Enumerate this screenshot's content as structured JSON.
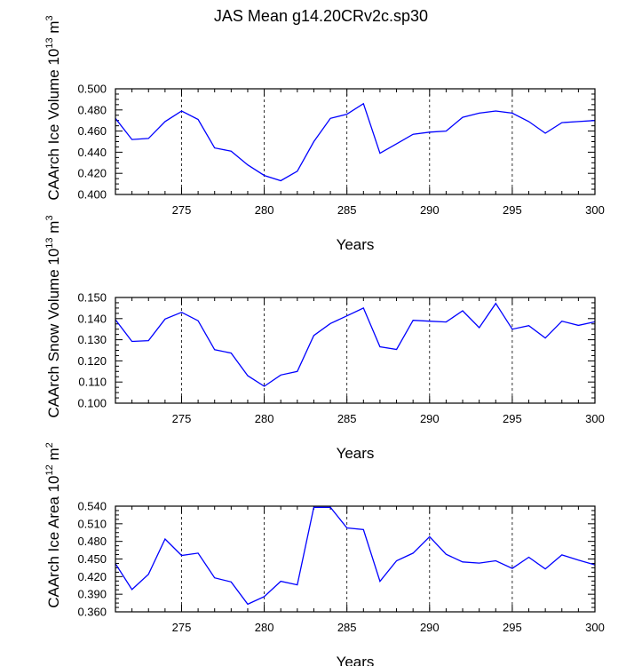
{
  "figure": {
    "title": "JAS Mean g14.20CRv2c.sp30"
  },
  "chart_data": [
    {
      "type": "line",
      "ylabel_main": "CAArch Ice Volume 10",
      "ylabel_exp": "13",
      "ylabel_unit": " m",
      "ylabel_unit_exp": "3",
      "xlabel": "Years",
      "xlim": [
        271,
        300
      ],
      "ylim": [
        0.4,
        0.5
      ],
      "xticks": [
        275,
        280,
        285,
        290,
        295,
        300
      ],
      "xtick_labels": [
        "275",
        "280",
        "285",
        "290",
        "295",
        "300"
      ],
      "yticks": [
        0.4,
        0.42,
        0.44,
        0.46,
        0.48,
        0.5
      ],
      "ytick_labels": [
        "0.400",
        "0.420",
        "0.440",
        "0.460",
        "0.480",
        "0.500"
      ],
      "line_color": "#0000ff",
      "x": [
        271,
        272,
        273,
        274,
        275,
        276,
        277,
        278,
        279,
        280,
        281,
        282,
        283,
        284,
        285,
        286,
        287,
        288,
        289,
        290,
        291,
        292,
        293,
        294,
        295,
        296,
        297,
        298,
        299,
        300
      ],
      "y": [
        0.472,
        0.452,
        0.453,
        0.469,
        0.479,
        0.471,
        0.444,
        0.441,
        0.428,
        0.418,
        0.413,
        0.422,
        0.45,
        0.472,
        0.476,
        0.486,
        0.439,
        0.448,
        0.457,
        0.459,
        0.46,
        0.473,
        0.477,
        0.479,
        0.477,
        0.469,
        0.458,
        0.468,
        0.469,
        0.47
      ]
    },
    {
      "type": "line",
      "ylabel_main": "CAArch Snow Volume 10",
      "ylabel_exp": "13",
      "ylabel_unit": " m",
      "ylabel_unit_exp": "3",
      "xlabel": "Years",
      "xlim": [
        271,
        300
      ],
      "ylim": [
        0.1,
        0.15
      ],
      "xticks": [
        275,
        280,
        285,
        290,
        295,
        300
      ],
      "xtick_labels": [
        "275",
        "280",
        "285",
        "290",
        "295",
        "300"
      ],
      "yticks": [
        0.1,
        0.11,
        0.12,
        0.13,
        0.14,
        0.15
      ],
      "ytick_labels": [
        "0.100",
        "0.110",
        "0.120",
        "0.130",
        "0.140",
        "0.150"
      ],
      "line_color": "#0000ff",
      "x": [
        271,
        272,
        273,
        274,
        275,
        276,
        277,
        278,
        279,
        280,
        281,
        282,
        283,
        284,
        285,
        286,
        287,
        288,
        289,
        290,
        291,
        292,
        293,
        294,
        295,
        296,
        297,
        298,
        299,
        300
      ],
      "y": [
        0.1395,
        0.1292,
        0.1296,
        0.1398,
        0.143,
        0.139,
        0.1253,
        0.1237,
        0.113,
        0.108,
        0.1133,
        0.115,
        0.132,
        0.1377,
        0.1413,
        0.145,
        0.1267,
        0.1254,
        0.1392,
        0.1388,
        0.1384,
        0.1437,
        0.1357,
        0.1472,
        0.135,
        0.1367,
        0.1308,
        0.1388,
        0.1368,
        0.1385
      ]
    },
    {
      "type": "line",
      "ylabel_main": "CAArch Ice Area 10",
      "ylabel_exp": "12",
      "ylabel_unit": " m",
      "ylabel_unit_exp": "2",
      "xlabel": "Years",
      "xlim": [
        271,
        300
      ],
      "ylim": [
        0.36,
        0.54
      ],
      "xticks": [
        275,
        280,
        285,
        290,
        295,
        300
      ],
      "xtick_labels": [
        "275",
        "280",
        "285",
        "290",
        "295",
        "300"
      ],
      "yticks": [
        0.36,
        0.39,
        0.42,
        0.45,
        0.48,
        0.51,
        0.54
      ],
      "ytick_labels": [
        "0.360",
        "0.390",
        "0.420",
        "0.450",
        "0.480",
        "0.510",
        "0.540"
      ],
      "line_color": "#0000ff",
      "x": [
        271,
        272,
        273,
        274,
        275,
        276,
        277,
        278,
        279,
        280,
        281,
        282,
        283,
        284,
        285,
        286,
        287,
        288,
        289,
        290,
        291,
        292,
        293,
        294,
        295,
        296,
        297,
        298,
        299,
        300
      ],
      "y": [
        0.442,
        0.398,
        0.424,
        0.484,
        0.456,
        0.46,
        0.418,
        0.411,
        0.373,
        0.386,
        0.412,
        0.406,
        0.538,
        0.538,
        0.503,
        0.5,
        0.412,
        0.447,
        0.46,
        0.488,
        0.458,
        0.445,
        0.443,
        0.447,
        0.434,
        0.453,
        0.433,
        0.457,
        0.448,
        0.44
      ]
    }
  ]
}
